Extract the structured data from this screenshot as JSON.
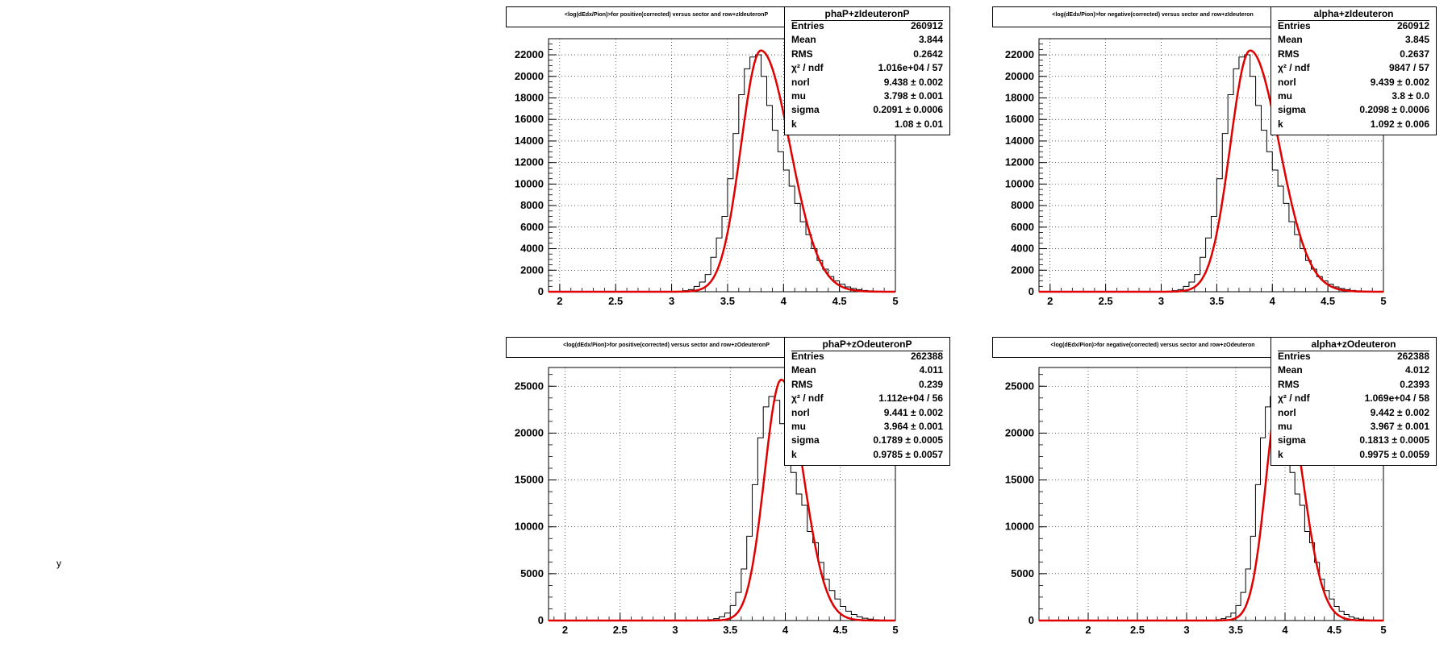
{
  "colors": {
    "histogram": "#000000",
    "fit": "#e00000",
    "grid": "#000000"
  },
  "chart_data": [
    {
      "type": "line",
      "title": "<log(dEdx/Pion)>for positive(corrected) versus sector and row+zIdeuteronP",
      "stats_name": "phaP+zIdeuteronP",
      "xlim": [
        1.9,
        5.0
      ],
      "ylim": [
        0,
        23500
      ],
      "xticks": [
        "2",
        "2.5",
        "3",
        "3.5",
        "4",
        "4.5",
        "5"
      ],
      "yticks": [
        "0",
        "2000",
        "4000",
        "6000",
        "8000",
        "10000",
        "12000",
        "14000",
        "16000",
        "18000",
        "20000",
        "22000"
      ],
      "grid": true,
      "series": [
        {
          "type": "step",
          "x": [
            3.1,
            3.15,
            3.2,
            3.25,
            3.3,
            3.35,
            3.4,
            3.45,
            3.5,
            3.55,
            3.6,
            3.65,
            3.7,
            3.75,
            3.8,
            3.85,
            3.9,
            3.95,
            4.0,
            4.05,
            4.1,
            4.15,
            4.2,
            4.25,
            4.3,
            4.35,
            4.4,
            4.45,
            4.5,
            4.55,
            4.6,
            4.65,
            4.7,
            4.75,
            4.8,
            4.85,
            4.9,
            4.95
          ],
          "y": [
            100,
            200,
            500,
            900,
            1600,
            3200,
            5000,
            7000,
            10500,
            14700,
            18300,
            20700,
            21800,
            22000,
            20000,
            17300,
            15000,
            13000,
            11300,
            9800,
            8200,
            6500,
            5300,
            4000,
            2900,
            2100,
            1400,
            1000,
            700,
            450,
            300,
            200,
            120,
            80,
            50,
            30,
            20,
            10
          ]
        },
        {
          "type": "fit",
          "norm": 22400,
          "mu": 3.798,
          "sigma": 0.2091,
          "k": 1.08
        }
      ],
      "stats": [
        {
          "k": "Entries",
          "v": "260912"
        },
        {
          "k": "Mean",
          "v": "3.844"
        },
        {
          "k": "RMS",
          "v": "0.2642"
        },
        {
          "k": "χ² / ndf",
          "v": "1.016e+04 / 57"
        },
        {
          "k": "norl",
          "v": "9.438 ± 0.002"
        },
        {
          "k": "mu",
          "v": "3.798 ± 0.001"
        },
        {
          "k": "sigma",
          "v": "0.2091 ± 0.0006"
        },
        {
          "k": "k",
          "v": "1.08 ± 0.01"
        }
      ]
    },
    {
      "type": "line",
      "title": "<log(dEdx/Pion)>for negative(corrected) versus sector and row+zIdeuteron",
      "stats_name": "alpha+zIdeuteron",
      "xlim": [
        1.9,
        5.0
      ],
      "ylim": [
        0,
        23500
      ],
      "xticks": [
        "2",
        "2.5",
        "3",
        "3.5",
        "4",
        "4.5",
        "5"
      ],
      "yticks": [
        "0",
        "2000",
        "4000",
        "6000",
        "8000",
        "10000",
        "12000",
        "14000",
        "16000",
        "18000",
        "20000",
        "22000"
      ],
      "grid": true,
      "series": [
        {
          "type": "step",
          "x": [
            3.1,
            3.15,
            3.2,
            3.25,
            3.3,
            3.35,
            3.4,
            3.45,
            3.5,
            3.55,
            3.6,
            3.65,
            3.7,
            3.75,
            3.8,
            3.85,
            3.9,
            3.95,
            4.0,
            4.05,
            4.1,
            4.15,
            4.2,
            4.25,
            4.3,
            4.35,
            4.4,
            4.45,
            4.5,
            4.55,
            4.6,
            4.65,
            4.7,
            4.75,
            4.8,
            4.85,
            4.9,
            4.95
          ],
          "y": [
            100,
            200,
            500,
            900,
            1600,
            3200,
            5000,
            7000,
            10500,
            14700,
            18300,
            20700,
            21800,
            22000,
            20000,
            17300,
            15000,
            13000,
            11300,
            9800,
            8200,
            6500,
            5300,
            4000,
            2900,
            2100,
            1400,
            1000,
            700,
            450,
            300,
            200,
            120,
            80,
            50,
            30,
            20,
            10
          ]
        },
        {
          "type": "fit",
          "norm": 22400,
          "mu": 3.8,
          "sigma": 0.2098,
          "k": 1.092
        }
      ],
      "stats": [
        {
          "k": "Entries",
          "v": "260912"
        },
        {
          "k": "Mean",
          "v": "3.845"
        },
        {
          "k": "RMS",
          "v": "0.2637"
        },
        {
          "k": "χ² / ndf",
          "v": "9847 / 57"
        },
        {
          "k": "norl",
          "v": "9.439 ± 0.002"
        },
        {
          "k": "mu",
          "v": "3.8 ± 0.0"
        },
        {
          "k": "sigma",
          "v": "0.2098 ± 0.0006"
        },
        {
          "k": "k",
          "v": "1.092 ± 0.006"
        }
      ]
    },
    {
      "type": "line",
      "title": "<log(dEdx/Pion)>for positive(corrected) versus sector and row+zOdeuteronP",
      "stats_name": "phaP+zOdeuteronP",
      "xlim": [
        1.85,
        5.0
      ],
      "ylim": [
        0,
        27000
      ],
      "xticks": [
        "2",
        "2.5",
        "3",
        "3.5",
        "4",
        "4.5",
        "5"
      ],
      "yticks": [
        "0",
        "5000",
        "10000",
        "15000",
        "20000",
        "25000"
      ],
      "grid": true,
      "series": [
        {
          "type": "step",
          "x": [
            3.3,
            3.35,
            3.4,
            3.45,
            3.5,
            3.55,
            3.6,
            3.65,
            3.7,
            3.75,
            3.8,
            3.85,
            3.9,
            3.95,
            4.0,
            4.05,
            4.1,
            4.15,
            4.2,
            4.25,
            4.3,
            4.35,
            4.4,
            4.45,
            4.5,
            4.55,
            4.6,
            4.65,
            4.7,
            4.75,
            4.8,
            4.85,
            4.9,
            4.95
          ],
          "y": [
            100,
            200,
            400,
            800,
            1600,
            3000,
            5500,
            9000,
            14500,
            19500,
            22800,
            23900,
            23500,
            21000,
            17800,
            15800,
            13500,
            12300,
            9500,
            8300,
            6200,
            4400,
            3200,
            2300,
            1500,
            1000,
            650,
            400,
            250,
            150,
            90,
            50,
            30,
            15
          ]
        },
        {
          "type": "fit",
          "norm": 25700,
          "mu": 3.964,
          "sigma": 0.1789,
          "k": 0.9785
        }
      ],
      "stats": [
        {
          "k": "Entries",
          "v": "262388"
        },
        {
          "k": "Mean",
          "v": "4.011"
        },
        {
          "k": "RMS",
          "v": "0.239"
        },
        {
          "k": "χ² / ndf",
          "v": "1.112e+04 / 56"
        },
        {
          "k": "norl",
          "v": "9.441 ± 0.002"
        },
        {
          "k": "mu",
          "v": "3.964 ± 0.001"
        },
        {
          "k": "sigma",
          "v": "0.1789 ± 0.0005"
        },
        {
          "k": "k",
          "v": "0.9785 ± 0.0057"
        }
      ]
    },
    {
      "type": "line",
      "title": "<log(dEdx/Pion)>for negative(corrected) versus sector and row+zOdeuteron",
      "stats_name": "alpha+zOdeuteron",
      "xlim": [
        1.5,
        5.0
      ],
      "ylim": [
        0,
        27000
      ],
      "xticks": [
        "2",
        "2.5",
        "3",
        "3.5",
        "4",
        "4.5",
        "5"
      ],
      "yticks": [
        "0",
        "5000",
        "10000",
        "15000",
        "20000",
        "25000"
      ],
      "grid": true,
      "series": [
        {
          "type": "step",
          "x": [
            3.3,
            3.35,
            3.4,
            3.45,
            3.5,
            3.55,
            3.6,
            3.65,
            3.7,
            3.75,
            3.8,
            3.85,
            3.9,
            3.95,
            4.0,
            4.05,
            4.1,
            4.15,
            4.2,
            4.25,
            4.3,
            4.35,
            4.4,
            4.45,
            4.5,
            4.55,
            4.6,
            4.65,
            4.7,
            4.75,
            4.8,
            4.85,
            4.9,
            4.95
          ],
          "y": [
            100,
            200,
            400,
            800,
            1600,
            3000,
            5500,
            9000,
            14500,
            19500,
            22800,
            23900,
            23500,
            21000,
            17800,
            15800,
            13500,
            12300,
            9500,
            8300,
            6200,
            4400,
            3200,
            2300,
            1500,
            1000,
            650,
            400,
            250,
            150,
            90,
            50,
            30,
            15
          ]
        },
        {
          "type": "fit",
          "norm": 25700,
          "mu": 3.967,
          "sigma": 0.1813,
          "k": 0.9975
        }
      ],
      "stats": [
        {
          "k": "Entries",
          "v": "262388"
        },
        {
          "k": "Mean",
          "v": "4.012"
        },
        {
          "k": "RMS",
          "v": "0.2393"
        },
        {
          "k": "χ² / ndf",
          "v": "1.069e+04 / 58"
        },
        {
          "k": "norl",
          "v": "9.442 ± 0.002"
        },
        {
          "k": "mu",
          "v": "3.967 ± 0.001"
        },
        {
          "k": "sigma",
          "v": "0.1813 ± 0.0005"
        },
        {
          "k": "k",
          "v": "0.9975 ± 0.0059"
        }
      ]
    }
  ],
  "corner_mark": "y"
}
